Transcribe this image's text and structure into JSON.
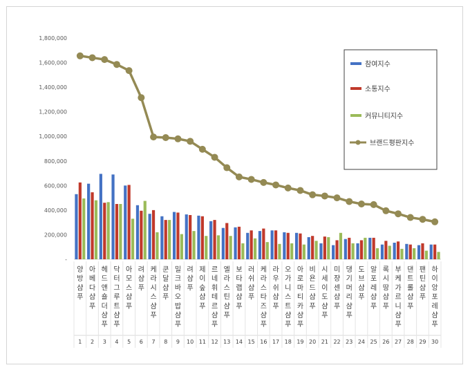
{
  "chart_data": {
    "type": "bar",
    "ylim": [
      0,
      1800000
    ],
    "yticks": [
      "-",
      "200,000",
      "400,000",
      "600,000",
      "800,000",
      "1,000,000",
      "1,200,000",
      "1,400,000",
      "1,600,000",
      "1,800,000"
    ],
    "legend_position": "top-right",
    "categories": [
      {
        "num": "1",
        "name": "양방샴푸"
      },
      {
        "num": "2",
        "name": "아베다샴푸"
      },
      {
        "num": "3",
        "name": "헤드앤숄더샴푸"
      },
      {
        "num": "4",
        "name": "닥터그루트샴푸"
      },
      {
        "num": "5",
        "name": "아모스샴푸"
      },
      {
        "num": "6",
        "name": "려샴푸"
      },
      {
        "num": "7",
        "name": "케라시스샴푸"
      },
      {
        "num": "8",
        "name": "쿤달샴푸"
      },
      {
        "num": "9",
        "name": "밀크바오밥샴푸"
      },
      {
        "num": "10",
        "name": "려샴푸"
      },
      {
        "num": "11",
        "name": "제이숲샴푸"
      },
      {
        "num": "12",
        "name": "르네휘테르샴푸"
      },
      {
        "num": "13",
        "name": "엘라스틴샴푸"
      },
      {
        "num": "14",
        "name": "보타랩샴푸"
      },
      {
        "num": "15",
        "name": "러쉬샴푸"
      },
      {
        "num": "16",
        "name": "케라스타즈샴푸"
      },
      {
        "num": "17",
        "name": "라우쉬샴푸"
      },
      {
        "num": "18",
        "name": "오가니스트샴푸"
      },
      {
        "num": "19",
        "name": "아로마티카샴푸"
      },
      {
        "num": "20",
        "name": "비욘드샴푸"
      },
      {
        "num": "21",
        "name": "시세이도샴푸"
      },
      {
        "num": "22",
        "name": "미쟝센샴푸"
      },
      {
        "num": "23",
        "name": "댕기머리샴푸"
      },
      {
        "num": "24",
        "name": "도브샴푸"
      },
      {
        "num": "25",
        "name": "알포레샴푸"
      },
      {
        "num": "26",
        "name": "록시땅샴푸"
      },
      {
        "num": "27",
        "name": "부케가르니샴푸"
      },
      {
        "num": "28",
        "name": "댄트롤샴푸"
      },
      {
        "num": "29",
        "name": "팬틴샴푸"
      },
      {
        "num": "30",
        "name": "하이앙포레샴푸"
      }
    ],
    "series": [
      {
        "name": "참여지수",
        "color": "#4472c4",
        "kind": "bar",
        "values": [
          530000,
          615000,
          695000,
          690000,
          600000,
          440000,
          370000,
          350000,
          385000,
          365000,
          355000,
          310000,
          255000,
          260000,
          215000,
          230000,
          235000,
          220000,
          215000,
          180000,
          130000,
          115000,
          165000,
          130000,
          175000,
          120000,
          135000,
          125000,
          115000,
          120000
        ]
      },
      {
        "name": "소통지수",
        "color": "#c0392b",
        "kind": "bar",
        "values": [
          625000,
          545000,
          460000,
          450000,
          605000,
          395000,
          400000,
          320000,
          380000,
          360000,
          350000,
          320000,
          295000,
          265000,
          235000,
          250000,
          235000,
          215000,
          210000,
          190000,
          185000,
          155000,
          175000,
          155000,
          175000,
          150000,
          145000,
          120000,
          130000,
          120000
        ]
      },
      {
        "name": "커뮤니티지수",
        "color": "#9bbb59",
        "kind": "bar",
        "values": [
          495000,
          480000,
          465000,
          450000,
          330000,
          475000,
          220000,
          320000,
          205000,
          230000,
          190000,
          195000,
          190000,
          130000,
          170000,
          140000,
          125000,
          130000,
          120000,
          150000,
          180000,
          215000,
          130000,
          175000,
          90000,
          110000,
          85000,
          90000,
          70000,
          60000
        ]
      },
      {
        "name": "브랜드평판지수",
        "color": "#948a54",
        "kind": "line",
        "values": [
          1655000,
          1640000,
          1625000,
          1585000,
          1535000,
          1315000,
          995000,
          990000,
          980000,
          960000,
          895000,
          830000,
          745000,
          670000,
          650000,
          625000,
          605000,
          580000,
          560000,
          525000,
          515000,
          500000,
          470000,
          450000,
          445000,
          395000,
          370000,
          340000,
          325000,
          305000
        ]
      }
    ]
  }
}
